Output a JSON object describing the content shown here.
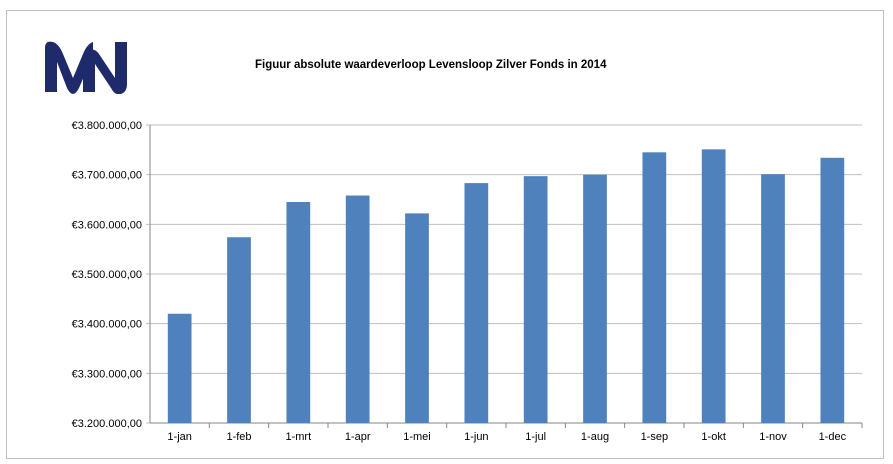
{
  "logo": {
    "text": "MN",
    "color": "#1f2a6b"
  },
  "chart_data": {
    "type": "bar",
    "title": "Figuur absolute waardeverloop Levensloop Zilver Fonds in 2014",
    "xlabel": "",
    "ylabel": "",
    "categories": [
      "1-jan",
      "1-feb",
      "1-mrt",
      "1-apr",
      "1-mei",
      "1-jun",
      "1-jul",
      "1-aug",
      "1-sep",
      "1-okt",
      "1-nov",
      "1-dec"
    ],
    "values": [
      3420000,
      3574000,
      3645000,
      3658000,
      3622000,
      3683000,
      3697000,
      3700000,
      3745000,
      3751000,
      3701000,
      3734000
    ],
    "ylim": [
      3200000,
      3800000
    ],
    "yticks": [
      3200000,
      3300000,
      3400000,
      3500000,
      3600000,
      3700000,
      3800000
    ],
    "ytick_labels": [
      "€3.200.000,00",
      "€3.300.000,00",
      "€3.400.000,00",
      "€3.500.000,00",
      "€3.600.000,00",
      "€3.700.000,00",
      "€3.800.000,00"
    ],
    "grid": true,
    "legend": "none",
    "bar_color": "#4f81bd",
    "grid_color": "#bfbfbf"
  }
}
